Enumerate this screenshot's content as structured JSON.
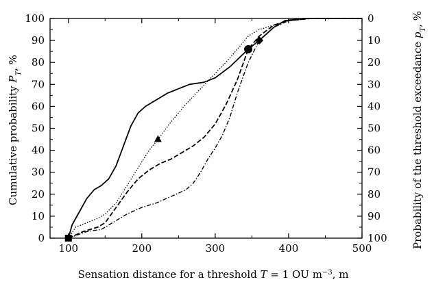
{
  "chart_data": {
    "type": "line",
    "xlabel": {
      "pre": "Sensation distance for a threshold ",
      "var": "T",
      "mid": " = 1 OU m",
      "sup": "−3",
      "post": ", m"
    },
    "ylabel_left": {
      "pre": "Cumulative probability ",
      "var": "P",
      "sub": "T",
      "post": ", %"
    },
    "ylabel_right": {
      "pre": "Probability of the threshold exceedance ",
      "var": "p",
      "sub": "T",
      "post": ", %"
    },
    "xlim": [
      75,
      500
    ],
    "ylim": [
      0,
      100
    ],
    "x_ticks": [
      "100",
      "200",
      "300",
      "400",
      "500"
    ],
    "x_tick_values": [
      100,
      200,
      300,
      400,
      500
    ],
    "y_ticks_left": [
      "0",
      "10",
      "20",
      "30",
      "40",
      "50",
      "60",
      "70",
      "80",
      "90",
      "100"
    ],
    "y_ticks_right": [
      "100",
      "90",
      "80",
      "70",
      "60",
      "50",
      "40",
      "30",
      "20",
      "10",
      "0"
    ],
    "y_tick_values": [
      0,
      10,
      20,
      30,
      40,
      50,
      60,
      70,
      80,
      90,
      100
    ],
    "series": [
      {
        "style": "solid",
        "points": [
          [
            100,
            0
          ],
          [
            105,
            6
          ],
          [
            115,
            12
          ],
          [
            125,
            18
          ],
          [
            135,
            22
          ],
          [
            145,
            24
          ],
          [
            155,
            27
          ],
          [
            165,
            33
          ],
          [
            175,
            42
          ],
          [
            185,
            51
          ],
          [
            195,
            57
          ],
          [
            205,
            60
          ],
          [
            220,
            63
          ],
          [
            235,
            66
          ],
          [
            250,
            68
          ],
          [
            265,
            70
          ],
          [
            285,
            71
          ],
          [
            300,
            73
          ],
          [
            320,
            78
          ],
          [
            345,
            86
          ],
          [
            360,
            90
          ],
          [
            380,
            96
          ],
          [
            395,
            99
          ],
          [
            420,
            100
          ],
          [
            500,
            100
          ]
        ]
      },
      {
        "style": "dotted",
        "points": [
          [
            100,
            0
          ],
          [
            110,
            5
          ],
          [
            125,
            7
          ],
          [
            140,
            9
          ],
          [
            150,
            11
          ],
          [
            165,
            16
          ],
          [
            180,
            24
          ],
          [
            195,
            32
          ],
          [
            210,
            40
          ],
          [
            222,
            45
          ],
          [
            240,
            53
          ],
          [
            260,
            61
          ],
          [
            280,
            68
          ],
          [
            300,
            75
          ],
          [
            320,
            82
          ],
          [
            335,
            88
          ],
          [
            345,
            92
          ],
          [
            360,
            95
          ],
          [
            380,
            97
          ],
          [
            400,
            99
          ],
          [
            430,
            100
          ],
          [
            500,
            100
          ]
        ]
      },
      {
        "style": "dashed",
        "points": [
          [
            100,
            0
          ],
          [
            120,
            3
          ],
          [
            140,
            5
          ],
          [
            150,
            7
          ],
          [
            165,
            14
          ],
          [
            180,
            21
          ],
          [
            195,
            27
          ],
          [
            210,
            31
          ],
          [
            225,
            34
          ],
          [
            240,
            36
          ],
          [
            255,
            39
          ],
          [
            270,
            42
          ],
          [
            285,
            46
          ],
          [
            300,
            52
          ],
          [
            315,
            61
          ],
          [
            330,
            72
          ],
          [
            345,
            86
          ],
          [
            360,
            92
          ],
          [
            380,
            97
          ],
          [
            400,
            99
          ],
          [
            430,
            100
          ],
          [
            500,
            100
          ]
        ]
      },
      {
        "style": "dash-dot",
        "points": [
          [
            100,
            0
          ],
          [
            125,
            3
          ],
          [
            145,
            4
          ],
          [
            160,
            7
          ],
          [
            180,
            11
          ],
          [
            200,
            14
          ],
          [
            220,
            16
          ],
          [
            240,
            19
          ],
          [
            260,
            22
          ],
          [
            270,
            25
          ],
          [
            280,
            30
          ],
          [
            290,
            36
          ],
          [
            300,
            41
          ],
          [
            310,
            47
          ],
          [
            320,
            55
          ],
          [
            330,
            66
          ],
          [
            345,
            80
          ],
          [
            360,
            90
          ],
          [
            380,
            96
          ],
          [
            400,
            99
          ],
          [
            430,
            100
          ],
          [
            500,
            100
          ]
        ]
      }
    ],
    "markers": [
      {
        "shape": "square",
        "x": 100,
        "y": 0
      },
      {
        "shape": "triangle",
        "x": 222,
        "y": 45
      },
      {
        "shape": "circle",
        "x": 345,
        "y": 86
      },
      {
        "shape": "diamond",
        "x": 360,
        "y": 90
      }
    ],
    "grid": false,
    "legend": "none"
  }
}
